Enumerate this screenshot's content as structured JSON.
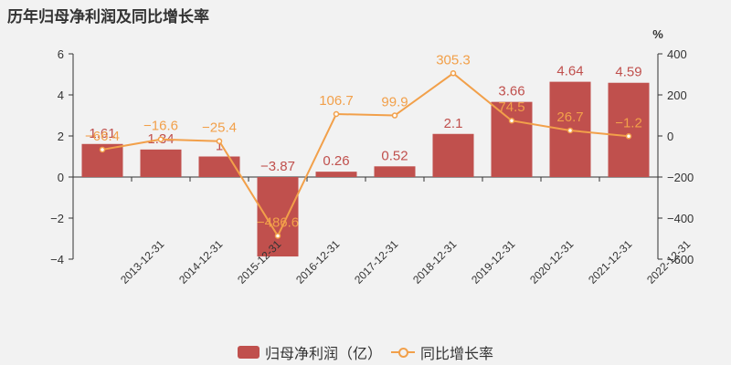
{
  "chart_data": {
    "type": "bar",
    "title": "历年归母净利润及同比增长率",
    "categories": [
      "2013-12-31",
      "2014-12-31",
      "2015-12-31",
      "2016-12-31",
      "2017-12-31",
      "2018-12-31",
      "2019-12-31",
      "2020-12-31",
      "2021-12-31",
      "2022-12-31"
    ],
    "series": [
      {
        "name": "归母净利润（亿）",
        "type": "bar",
        "axis": "left",
        "values": [
          1.61,
          1.34,
          1,
          -3.87,
          0.26,
          0.52,
          2.1,
          3.66,
          4.64,
          4.59
        ],
        "labels": [
          "1.61",
          "1.34",
          "1",
          "−3.87",
          "0.26",
          "0.52",
          "2.1",
          "3.66",
          "4.64",
          "4.59"
        ],
        "color": "#c0504d"
      },
      {
        "name": "同比增长率",
        "type": "line",
        "axis": "right",
        "values": [
          -66.4,
          -16.6,
          -25.4,
          -486.6,
          106.7,
          99.9,
          305.3,
          74.5,
          26.7,
          -1.2
        ],
        "labels": [
          "−66.4",
          "−16.6",
          "−25.4",
          "−486.6",
          "106.7",
          "99.9",
          "305.3",
          "74.5",
          "26.7",
          "−1.2"
        ],
        "color": "#f2a04a"
      }
    ],
    "y_left": {
      "min": -4,
      "max": 6,
      "ticks": [
        -4,
        -2,
        0,
        2,
        4,
        6
      ],
      "tick_labels": [
        "−4",
        "−2",
        "0",
        "2",
        "4",
        "6"
      ]
    },
    "y_right": {
      "min": -600,
      "max": 400,
      "ticks": [
        -600,
        -400,
        -200,
        0,
        200,
        400
      ],
      "tick_labels": [
        "−600",
        "−400",
        "−200",
        "0",
        "200",
        "400"
      ],
      "unit": "%"
    },
    "grid": false,
    "legend_position": "bottom"
  }
}
